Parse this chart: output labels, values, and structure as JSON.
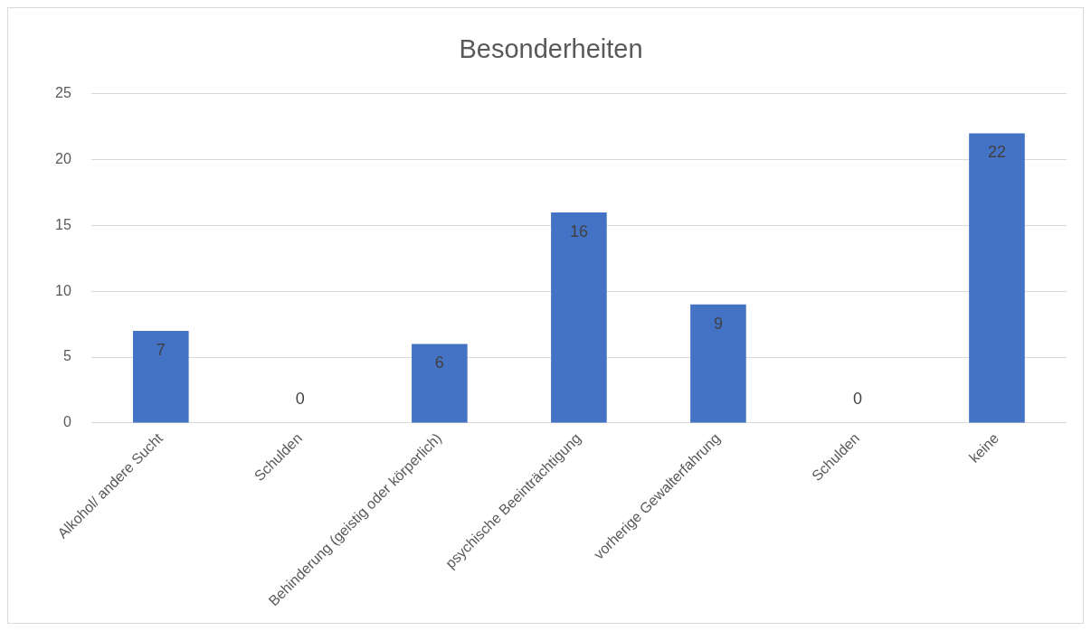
{
  "chart_data": {
    "type": "bar",
    "title": "Besonderheiten",
    "categories": [
      "Alkohol/ andere Sucht",
      "Schulden",
      "Behinderung (geistig oder körperlich)",
      "psychische Beeinträchtigung",
      "vorherige Gewalterfahrung",
      "Schulden",
      "keine"
    ],
    "values": [
      7,
      0,
      6,
      16,
      9,
      0,
      22
    ],
    "color": "#4472c4",
    "ylim": [
      0,
      25
    ],
    "yticks": [
      0,
      5,
      10,
      15,
      20,
      25
    ],
    "grid": "y",
    "data_labels": true,
    "legend": false
  }
}
